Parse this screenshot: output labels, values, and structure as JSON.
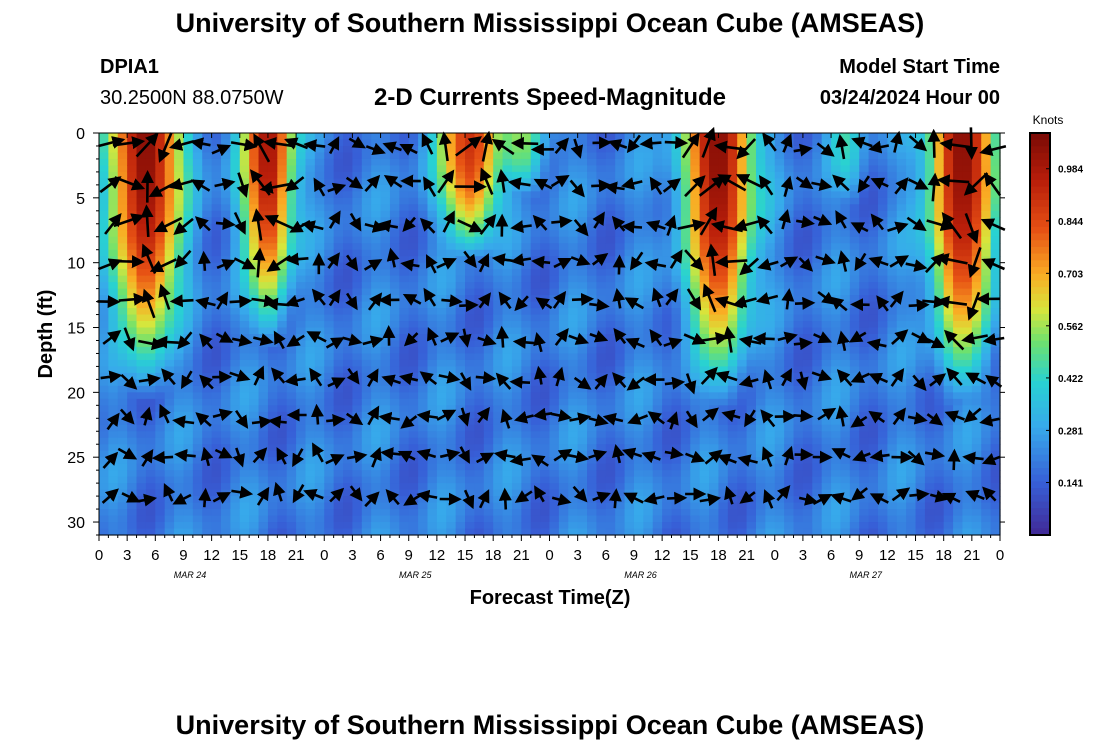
{
  "page": {
    "title": "University of Southern Mississippi Ocean Cube (AMSEAS)",
    "station_id": "DPIA1",
    "coordinates": "30.2500N  88.0750W",
    "subtitle": "2-D Currents Speed-Magnitude",
    "model_start_label": "Model Start Time",
    "model_start_value": "03/24/2024 Hour 00",
    "footer_title": "University of Southern Mississippi Ocean Cube (AMSEAS)"
  },
  "chart_data": {
    "type": "heatmap",
    "title": "2-D Currents Speed-Magnitude",
    "xlabel": "Forecast Time(Z)",
    "ylabel": "Depth (ft)",
    "x_hours_range": [
      0,
      96
    ],
    "ylim": [
      0,
      31
    ],
    "y_ticks": [
      0,
      5,
      10,
      15,
      20,
      25,
      30
    ],
    "x_tick_labels": [
      "0",
      "3",
      "6",
      "9",
      "12",
      "15",
      "18",
      "21",
      "0",
      "3",
      "6",
      "9",
      "12",
      "15",
      "18",
      "21",
      "0",
      "3",
      "6",
      "9",
      "12",
      "15",
      "18",
      "21",
      "0",
      "3",
      "6",
      "9",
      "12",
      "15",
      "18",
      "21",
      "0"
    ],
    "day_labels": [
      {
        "label": "MAR 24",
        "hour": 9.7
      },
      {
        "label": "MAR 25",
        "hour": 33.7
      },
      {
        "label": "MAR 26",
        "hour": 57.7
      },
      {
        "label": "MAR 27",
        "hour": 81.7
      }
    ],
    "colorbar": {
      "units": "Knots",
      "min": 0.0,
      "max": 1.08,
      "ticks": [
        0.141,
        0.281,
        0.422,
        0.562,
        0.703,
        0.844,
        0.984
      ]
    },
    "high_speed_cores": [
      {
        "center_hour": 5.0,
        "peak": 1.05,
        "depth_extent_ft": 22,
        "half_width_hours": 4.5
      },
      {
        "center_hour": 18.0,
        "peak": 1.0,
        "depth_extent_ft": 18,
        "half_width_hours": 3.2
      },
      {
        "center_hour": 39.5,
        "peak": 0.9,
        "depth_extent_ft": 11,
        "half_width_hours": 4.0
      },
      {
        "center_hour": 45.0,
        "peak": 0.55,
        "depth_extent_ft": 6,
        "half_width_hours": 3.0
      },
      {
        "center_hour": 66.0,
        "peak": 1.05,
        "depth_extent_ft": 23,
        "half_width_hours": 4.3
      },
      {
        "center_hour": 92.0,
        "peak": 1.05,
        "depth_extent_ft": 23,
        "half_width_hours": 4.2
      },
      {
        "center_hour": 79.5,
        "peak": 0.45,
        "depth_extent_ft": 7,
        "half_width_hours": 2.0
      }
    ]
  }
}
